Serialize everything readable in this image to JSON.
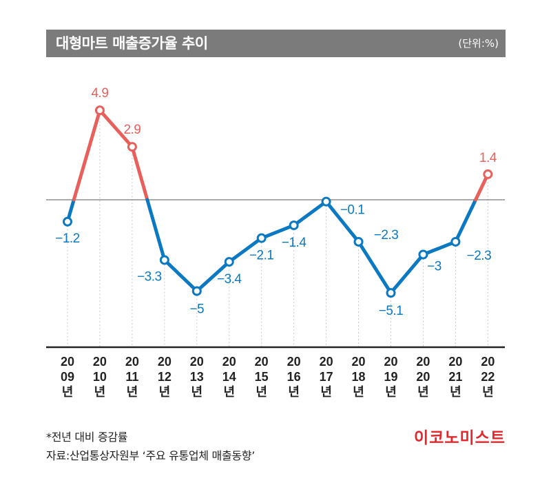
{
  "header": {
    "title": "대형마트 매출증가율 추이",
    "unit": "(단위:%)"
  },
  "footnotes": {
    "note": "*전년 대비 증감률",
    "source": "자료:산업통상자원부 ‘주요 유통업체 매출동향’"
  },
  "brand": "이코노미스트",
  "colors": {
    "positive": "#e8605c",
    "negative": "#0b78c2",
    "title_bg": "#7b7b7b",
    "axis": "#222222",
    "zero_line": "#555555",
    "guide": "#c8c8c8"
  },
  "chart_data": {
    "type": "line",
    "title": "대형마트 매출증가율 추이",
    "ylabel": "",
    "xlabel": "",
    "year_suffix": "년",
    "categories": [
      "2009",
      "2010",
      "2011",
      "2012",
      "2013",
      "2014",
      "2015",
      "2016",
      "2017",
      "2018",
      "2019",
      "2020",
      "2021",
      "2022"
    ],
    "tick_top": [
      "20",
      "20",
      "20",
      "20",
      "20",
      "20",
      "20",
      "20",
      "20",
      "20",
      "20",
      "20",
      "20",
      "20"
    ],
    "tick_bottom": [
      "09",
      "10",
      "11",
      "12",
      "13",
      "14",
      "15",
      "16",
      "17",
      "18",
      "19",
      "20",
      "21",
      "22"
    ],
    "values": [
      -1.2,
      4.9,
      2.9,
      -3.3,
      -5,
      -3.4,
      -2.1,
      -1.4,
      -0.1,
      -2.3,
      -5.1,
      -3,
      -2.3,
      1.4
    ],
    "labels": [
      "−1.2",
      "4.9",
      "2.9",
      "−3.3",
      "−5",
      "−3.4",
      "−2.1",
      "−1.4",
      "−0.1",
      "−2.3",
      "−5.1",
      "−3",
      "−2.3",
      "1.4"
    ],
    "ylim": [
      -8,
      6
    ],
    "baseline": 0,
    "grid": false
  }
}
